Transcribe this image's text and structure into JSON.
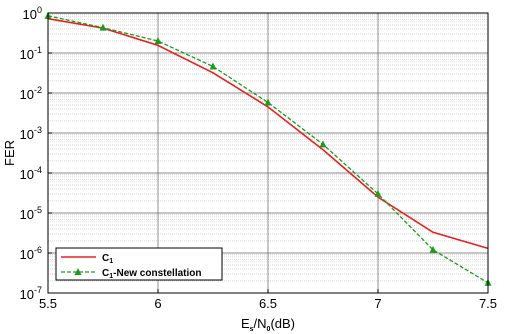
{
  "chart_data": {
    "type": "line",
    "y_scale": "log",
    "grid": true,
    "legend_position": "bottom-left",
    "xlabel": {
      "base": "E",
      "sub1": "s",
      "mid": "/N",
      "sub2": "0",
      "tail": "(dB)"
    },
    "ylabel": "FER",
    "xlim": [
      5.5,
      7.5
    ],
    "ylim": [
      1e-07,
      1
    ],
    "x_ticks": [
      5.5,
      6,
      6.5,
      7,
      7.5
    ],
    "x_tick_labels": [
      "5.5",
      "6",
      "6.5",
      "7",
      "7.5"
    ],
    "y_ticks": [
      {
        "value": 1,
        "base": "10",
        "exp": "0"
      },
      {
        "value": 0.1,
        "base": "10",
        "exp": "-1"
      },
      {
        "value": 0.01,
        "base": "10",
        "exp": "-2"
      },
      {
        "value": 0.001,
        "base": "10",
        "exp": "-3"
      },
      {
        "value": 0.0001,
        "base": "10",
        "exp": "-4"
      },
      {
        "value": 1e-05,
        "base": "10",
        "exp": "-5"
      },
      {
        "value": 1e-06,
        "base": "10",
        "exp": "-6"
      },
      {
        "value": 1e-07,
        "base": "10",
        "exp": "-7"
      }
    ],
    "series": [
      {
        "name": {
          "base": "C",
          "sub": "1",
          "tail": ""
        },
        "color": "#e8201f",
        "style": "solid",
        "marker": "none",
        "x": [
          5.5,
          5.75,
          6.0,
          6.25,
          6.5,
          6.75,
          7.0,
          7.25,
          7.5
        ],
        "y": [
          0.72,
          0.42,
          0.155,
          0.032,
          0.0045,
          0.00038,
          2.5e-05,
          3.3e-06,
          1.3e-06
        ]
      },
      {
        "name": {
          "base": "C",
          "sub": "1",
          "tail": "-New constellation"
        },
        "color": "#1f9a1f",
        "style": "dashed",
        "marker": "triangle",
        "x": [
          5.5,
          5.75,
          6.0,
          6.25,
          6.5,
          6.75,
          7.0,
          7.25,
          7.5
        ],
        "y": [
          0.85,
          0.43,
          0.2,
          0.046,
          0.0058,
          0.00052,
          3e-05,
          1.2e-06,
          1.8e-07
        ]
      }
    ]
  }
}
